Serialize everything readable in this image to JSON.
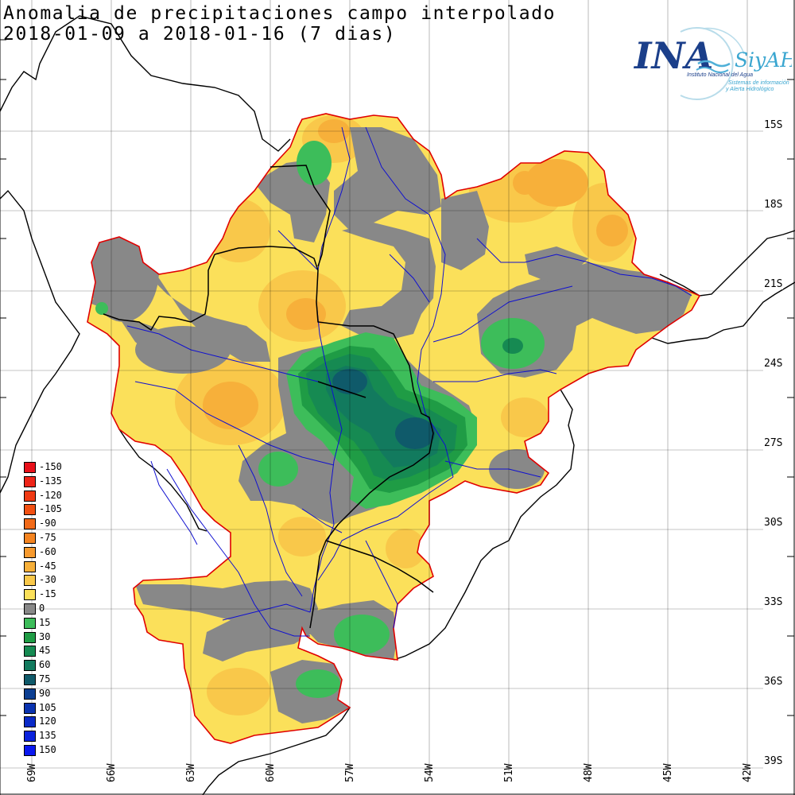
{
  "title": {
    "line1": "Anomalia de precipitaciones campo interpolado",
    "line2": "2018-01-09 a 2018-01-16 (7 dias)"
  },
  "logo": {
    "name": "INA",
    "system": "SiyAH",
    "institute": "Instituto Nacional del Agua",
    "subtitle_1": "Sistemas de información",
    "subtitle_2": "y Alerta Hidrológico"
  },
  "axes": {
    "lat_labels": [
      "15S",
      "18S",
      "21S",
      "24S",
      "27S",
      "30S",
      "33S",
      "36S",
      "39S"
    ],
    "lon_labels": [
      "69W",
      "66W",
      "63W",
      "60W",
      "57W",
      "54W",
      "51W",
      "48W",
      "45W",
      "42W"
    ]
  },
  "legend": [
    {
      "label": "-150",
      "color": "#e8101a"
    },
    {
      "label": "-135",
      "color": "#ee2418"
    },
    {
      "label": "-120",
      "color": "#f03a14"
    },
    {
      "label": "-105",
      "color": "#f25012"
    },
    {
      "label": "-90",
      "color": "#f26a18"
    },
    {
      "label": "-75",
      "color": "#f58420"
    },
    {
      "label": "-60",
      "color": "#f79a2e"
    },
    {
      "label": "-45",
      "color": "#f7b03a"
    },
    {
      "label": "-30",
      "color": "#f9c84a"
    },
    {
      "label": "-15",
      "color": "#fbe05a"
    },
    {
      "label": "0",
      "color": "#888888"
    },
    {
      "label": "15",
      "color": "#3dbd5a"
    },
    {
      "label": "30",
      "color": "#1f9c45"
    },
    {
      "label": "45",
      "color": "#168a52"
    },
    {
      "label": "60",
      "color": "#127a5e"
    },
    {
      "label": "75",
      "color": "#0f5a6a"
    },
    {
      "label": "90",
      "color": "#0c3f92"
    },
    {
      "label": "105",
      "color": "#0a33b0"
    },
    {
      "label": "120",
      "color": "#0a2ac8"
    },
    {
      "label": "135",
      "color": "#0a22dc"
    },
    {
      "label": "150",
      "color": "#0a18f0"
    }
  ]
}
